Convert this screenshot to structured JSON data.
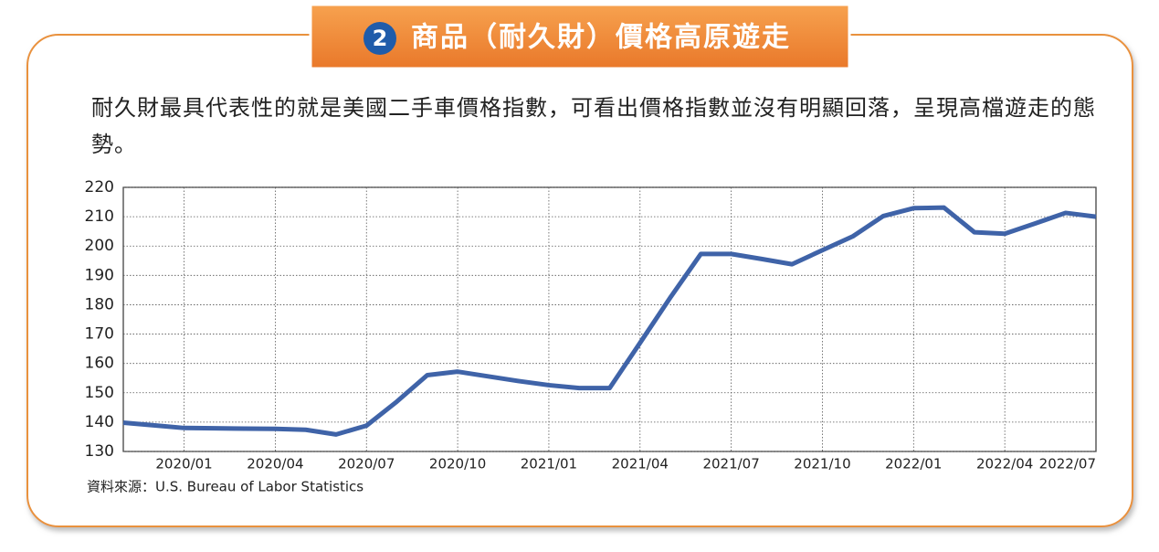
{
  "header": {
    "number": "2",
    "title": "商品（耐久財）價格高原遊走"
  },
  "description": "耐久財最具代表性的就是美國二手車價格指數，可看出價格指數並沒有明顯回落，呈現高檔遊走的態勢。",
  "chart_data": {
    "type": "line",
    "categories": [
      null,
      null,
      "2020/01",
      null,
      null,
      "2020/04",
      null,
      null,
      "2020/07",
      null,
      null,
      "2020/10",
      null,
      null,
      "2021/01",
      null,
      null,
      "2021/04",
      null,
      null,
      "2021/07",
      null,
      null,
      "2021/10",
      null,
      null,
      "2022/01",
      null,
      null,
      "2022/04",
      null,
      null,
      "2022/07"
    ],
    "values": [
      139.8,
      138.9,
      138.0,
      137.9,
      137.8,
      137.7,
      137.4,
      135.8,
      138.8,
      147,
      156,
      157.2,
      155.6,
      154,
      152.6,
      151.6,
      151.6,
      167,
      182.5,
      197.3,
      197.3,
      195.6,
      193.8,
      198.6,
      203.3,
      210.2,
      212.9,
      213.1,
      204.7,
      204.2,
      207.7,
      211.3,
      210.0
    ],
    "color": "#3f63a8",
    "ylim": [
      130,
      220
    ],
    "yticks": [
      130,
      140,
      150,
      160,
      170,
      180,
      190,
      200,
      210,
      220
    ],
    "grid": true,
    "source": "資料來源：U.S. Bureau of Labor Statistics"
  }
}
